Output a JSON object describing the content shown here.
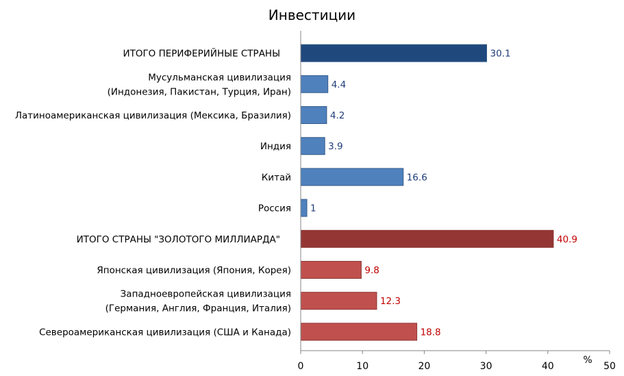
{
  "chart_data": {
    "type": "bar",
    "orientation": "horizontal",
    "title": "Инвестиции",
    "xlabel": "%",
    "xlim": [
      0,
      50
    ],
    "x_ticks": [
      "0",
      "10",
      "20",
      "30",
      "40",
      "50"
    ],
    "grid": false,
    "legend": "none",
    "categories": [
      {
        "lines": [
          "ИТОГО ПЕРИФЕРИЙНЫЕ  СТРАНЫ"
        ],
        "value": 30.1,
        "value_label": "30.1",
        "style": "total",
        "group": "periphery"
      },
      {
        "lines": [
          "Мусульманская цивилизация",
          "(Индонезия, Пакистан, Турция, Иран)"
        ],
        "value": 4.4,
        "value_label": "4.4",
        "style": "item",
        "group": "periphery"
      },
      {
        "lines": [
          "Латиноамериканская цивилизация (Мексика, Бразилия)"
        ],
        "value": 4.2,
        "value_label": "4.2",
        "style": "item",
        "group": "periphery"
      },
      {
        "lines": [
          "Индия"
        ],
        "value": 3.9,
        "value_label": "3.9",
        "style": "item",
        "group": "periphery"
      },
      {
        "lines": [
          "Китай"
        ],
        "value": 16.6,
        "value_label": "16.6",
        "style": "item",
        "group": "periphery"
      },
      {
        "lines": [
          "Россия"
        ],
        "value": 1,
        "value_label": "1",
        "style": "item",
        "group": "periphery"
      },
      {
        "lines": [
          "ИТОГО СТРАНЫ  \"ЗОЛОТОГО  МИЛЛИАРДА\""
        ],
        "value": 40.9,
        "value_label": "40.9",
        "style": "total",
        "group": "golden"
      },
      {
        "lines": [
          "Японская цивилизация (Япония, Корея)"
        ],
        "value": 9.8,
        "value_label": "9.8",
        "style": "item",
        "group": "golden"
      },
      {
        "lines": [
          "Западноевропейская цивилизация",
          "(Германия, Англия, Франция, Италия)"
        ],
        "value": 12.3,
        "value_label": "12.3",
        "style": "item",
        "group": "golden"
      },
      {
        "lines": [
          "Североамериканская цивилизация (США и Канада)"
        ],
        "value": 18.8,
        "value_label": "18.8",
        "style": "item",
        "group": "golden"
      }
    ],
    "colors": {
      "periphery_total": "#1f497d",
      "periphery_item": "#4f81bd",
      "periphery_total_label": "#1f3c78",
      "periphery_value_label": "#1f3c78",
      "golden_total": "#943634",
      "golden_item": "#c0504d",
      "golden_total_label": "#c00000",
      "golden_value_label": "#c00000"
    }
  }
}
